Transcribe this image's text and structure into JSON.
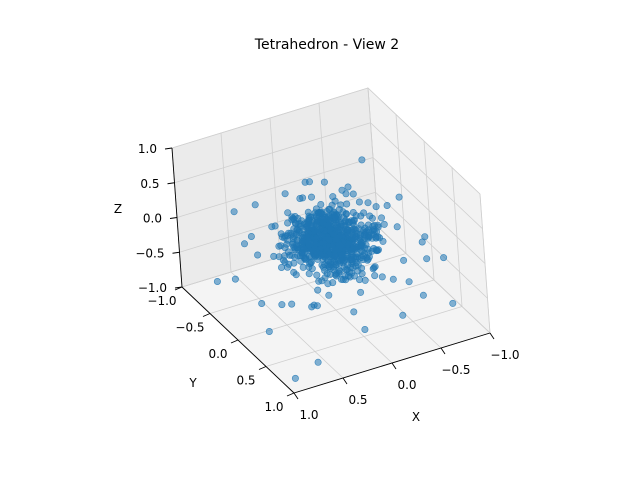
{
  "chart_data": {
    "type": "scatter",
    "projection": "3d",
    "title": "Tetrahedron - View 2",
    "xlabel": "X",
    "ylabel": "Y",
    "zlabel": "Z",
    "xlim": [
      -1.0,
      1.0
    ],
    "ylim": [
      -1.0,
      1.0
    ],
    "zlim": [
      -1.0,
      1.0
    ],
    "x_ticks": [
      "−1.0",
      "−0.5",
      "0.0",
      "0.5",
      "1.0"
    ],
    "y_ticks": [
      "−1.0",
      "−0.5",
      "0.0",
      "0.5",
      "1.0"
    ],
    "z_ticks": [
      "−1.0",
      "−0.5",
      "0.0",
      "0.5",
      "1.0"
    ],
    "grid": true,
    "marker_color": "#1f77b4",
    "pane_color": "#f2f2f2",
    "series": [
      {
        "points": [
          [
            0.55,
            0.62,
            0.48
          ],
          [
            0.31,
            -0.22,
            0.64
          ],
          [
            -0.12,
            0.05,
            0.71
          ],
          [
            0.08,
            0.41,
            0.55
          ],
          [
            -0.35,
            -0.18,
            0.38
          ],
          [
            0.22,
            0.11,
            0.32
          ],
          [
            -0.05,
            -0.41,
            0.29
          ],
          [
            0.44,
            0.27,
            0.21
          ],
          [
            -0.28,
            0.33,
            0.18
          ],
          [
            0.12,
            -0.08,
            0.15
          ],
          [
            -0.51,
            0.02,
            0.12
          ],
          [
            0.36,
            -0.36,
            0.09
          ],
          [
            0.02,
            0.24,
            0.06
          ],
          [
            -0.18,
            -0.29,
            0.03
          ],
          [
            0.27,
            0.46,
            -0.02
          ],
          [
            -0.42,
            0.19,
            -0.05
          ],
          [
            0.15,
            -0.52,
            -0.08
          ],
          [
            -0.08,
            0.08,
            -0.11
          ],
          [
            0.48,
            0.05,
            -0.14
          ],
          [
            -0.31,
            -0.45,
            -0.17
          ],
          [
            0.05,
            0.38,
            -0.2
          ],
          [
            -0.22,
            0.51,
            -0.23
          ],
          [
            0.39,
            -0.19,
            -0.26
          ],
          [
            -0.55,
            -0.12,
            -0.29
          ],
          [
            0.18,
            0.18,
            -0.32
          ],
          [
            -0.12,
            -0.22,
            -0.35
          ],
          [
            0.62,
            0.35,
            -0.38
          ],
          [
            -0.38,
            0.41,
            -0.41
          ],
          [
            0.25,
            -0.43,
            -0.44
          ],
          [
            -0.02,
            0.02,
            -0.47
          ],
          [
            0.42,
            -0.62,
            -0.5
          ],
          [
            -0.48,
            -0.35,
            -0.53
          ],
          [
            0.11,
            0.55,
            -0.56
          ],
          [
            -0.25,
            0.12,
            -0.59
          ],
          [
            0.33,
            0.22,
            -0.62
          ],
          [
            -0.61,
            0.27,
            -0.65
          ],
          [
            0.08,
            -0.31,
            -0.68
          ],
          [
            -0.15,
            -0.58,
            -0.71
          ],
          [
            0.51,
            -0.05,
            -0.74
          ],
          [
            -0.35,
            0.6,
            -0.77
          ],
          [
            0.72,
            -0.28,
            0.05
          ],
          [
            -0.68,
            0.44,
            0.02
          ],
          [
            0.61,
            0.71,
            -0.15
          ],
          [
            -0.74,
            -0.51,
            -0.22
          ],
          [
            0.81,
            0.14,
            -0.45
          ],
          [
            -0.82,
            -0.21,
            0.11
          ],
          [
            0.14,
            0.82,
            0.21
          ],
          [
            -0.19,
            -0.78,
            0.16
          ],
          [
            0.66,
            -0.55,
            0.28
          ],
          [
            -0.58,
            0.69,
            0.33
          ],
          [
            0.9,
            0.42,
            -0.6
          ],
          [
            -0.88,
            0.12,
            -0.55
          ],
          [
            0.37,
            -0.81,
            -0.4
          ],
          [
            -0.44,
            0.85,
            -0.33
          ],
          [
            0.05,
            0.05,
            0.9
          ],
          [
            0.12,
            -0.1,
            0.82
          ],
          [
            -0.09,
            0.18,
            0.77
          ],
          [
            0.74,
            0.58,
            0.42
          ],
          [
            -0.71,
            -0.66,
            0.35
          ],
          [
            0.92,
            -0.12,
            -0.25
          ],
          [
            -0.95,
            0.31,
            -0.42
          ],
          [
            0.21,
            0.93,
            -0.48
          ],
          [
            -0.27,
            -0.91,
            -0.52
          ],
          [
            0.57,
            0.77,
            0.12
          ],
          [
            -0.62,
            -0.79,
            -0.1
          ],
          [
            0.83,
            -0.64,
            -0.72
          ],
          [
            -0.79,
            0.73,
            -0.69
          ],
          [
            0.68,
            0.89,
            -0.78
          ],
          [
            -0.86,
            -0.83,
            -0.8
          ],
          [
            0.95,
            0.95,
            -0.85
          ]
        ]
      }
    ]
  }
}
